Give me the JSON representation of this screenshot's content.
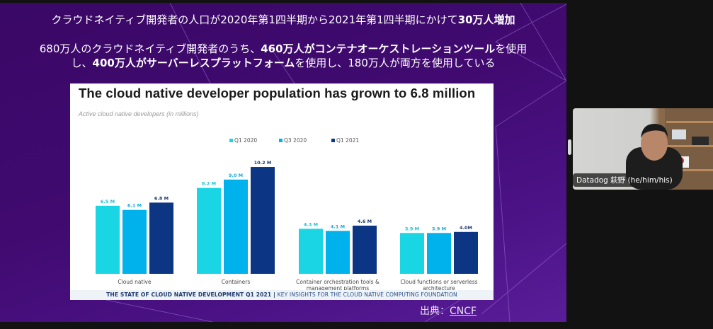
{
  "slide": {
    "headline1": {
      "normal": "クラウドネイティブ開発者の人口が2020年第1四半期から2021年第1四半期にかけて",
      "bold": "30万人増加"
    },
    "headline2": {
      "line1_a": "680万人のクラウドネイティブ開発者のうち、",
      "line1_b_bold": "460万人がコンテナオーケストレーションツール",
      "line1_c": "を使用",
      "line2_a": "し、",
      "line2_b_bold": "400万人がサーバーレスプラットフォーム",
      "line2_c": "を使用し、180万人が両方を使用している"
    },
    "source_label": "出典：",
    "source_link": "CNCF"
  },
  "chart_data": {
    "type": "bar",
    "title": "The cloud native developer population has grown to 6.8 million",
    "subtitle": "Active cloud native developers (in millions)",
    "xlabel": "",
    "ylabel": "",
    "ylim": [
      0,
      10.2
    ],
    "legend_position": "top-center",
    "categories": [
      "Cloud native",
      "Containers",
      "Container orchestration tools & management platforms",
      "Cloud functions or serverless architecture"
    ],
    "category_lines": [
      [
        "Cloud native"
      ],
      [
        "Containers"
      ],
      [
        "Container orchestration tools &",
        "management platforms"
      ],
      [
        "Cloud functions or serverless",
        "architecture"
      ]
    ],
    "series": [
      {
        "name": "Q1 2020",
        "color": "#1ad6e4",
        "label_color": "#1ac4d6",
        "values": [
          6.5,
          8.2,
          4.3,
          3.9
        ],
        "labels": [
          "6.5 M",
          "8.2 M",
          "4.3 M",
          "3.9 M"
        ]
      },
      {
        "name": "Q3 2020",
        "color": "#00b2ec",
        "label_color": "#15a9e0",
        "values": [
          6.1,
          9.0,
          4.1,
          3.9
        ],
        "labels": [
          "6.1 M",
          "9.0 M",
          "4.1 M",
          "3.9 M"
        ]
      },
      {
        "name": "Q1 2021",
        "color": "#0c3584",
        "label_color": "#1f3a6e",
        "values": [
          6.8,
          10.2,
          4.6,
          4.0
        ],
        "labels": [
          "6.8 M",
          "10.2 M",
          "4.6 M",
          "4.0M"
        ]
      }
    ],
    "footer_bold": "THE STATE OF CLOUD NATIVE DEVELOPMENT Q1 2021 | ",
    "footer_light": "KEY INSIGHTS  FOR THE CLOUD NATIVE COMPUTING FOUNDATION"
  },
  "video": {
    "participant_name": "Datadog 萩野 (he/him/his)"
  }
}
